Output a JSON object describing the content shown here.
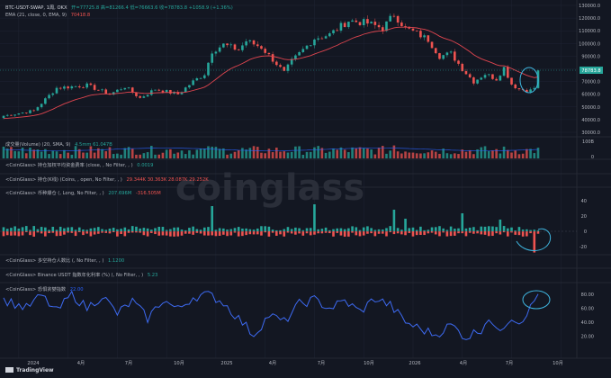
{
  "header": {
    "symbol": "BTC-USDT-SWAP, 1周, OKX",
    "ohlc": "开=77725.8  高=81266.4  低=76663.6  收=78783.8  +1058.9 (+1.36%)"
  },
  "price_pane": {
    "ema_label": "EMA (21, close, 0, EMA, 9)",
    "ema_value": "70418.8",
    "axis_ticks": [
      "130000.0",
      "120000.0",
      "110000.0",
      "100000.0",
      "90000.0",
      "80000.0",
      "70000.0",
      "60000.0",
      "50000.0",
      "40000.0",
      "30000.0"
    ],
    "last_price_tag": "78783.8"
  },
  "volume_pane": {
    "label": "成交量(Volume) (20, SMA, 9)",
    "values": "4.5mm   61.047B",
    "axis_ticks": [
      "100B",
      "0"
    ]
  },
  "indicator_funding": {
    "label": "<CoinGlass> 持仓加权平均资金费率 (close, , No Filter, , )",
    "value": "0.0019"
  },
  "indicator_oi": {
    "label": "<CoinGlass> 持仓(K线) (Coins, , open, No Filter, , )",
    "value": "29.344K  30.363K  28.087K  29.252K"
  },
  "indicator_liq": {
    "label": "<CoinGlass> 币种爆仓 (, Long, No Filter, , )",
    "value_long": "207.696M",
    "value_short": "-316.505M",
    "axis_ticks": [
      "40",
      "20",
      "0",
      "-20"
    ]
  },
  "indicator_ls": {
    "label": "<CoinGlass> 多空持仓人数比 (, No Filter, , )",
    "value": "1.1200"
  },
  "indicator_apr": {
    "label": "<CoinGlass> Binance USDT 指数年化利率 (%) (, No Filter, , )",
    "value": "5.23"
  },
  "indicator_fear": {
    "label": "<CoinGlass> 恐惧贪婪指数",
    "value": "22.00",
    "axis_ticks": [
      "80.00",
      "60.00",
      "40.00",
      "20.00"
    ]
  },
  "x_axis": {
    "ticks": [
      "2024",
      "4月",
      "7月",
      "10月",
      "2025",
      "4月",
      "7月",
      "10月",
      "2026",
      "4月",
      "7月",
      "10月"
    ]
  },
  "watermark": "coinglass",
  "footer": {
    "brand": "TradingView"
  },
  "colors": {
    "background": "#131722",
    "up": "#26a69a",
    "down": "#ef5350",
    "ema": "#e0454f",
    "fear_line": "#3d6af2",
    "annotation": "#3fb6e0",
    "grid": "#1f2433"
  }
}
